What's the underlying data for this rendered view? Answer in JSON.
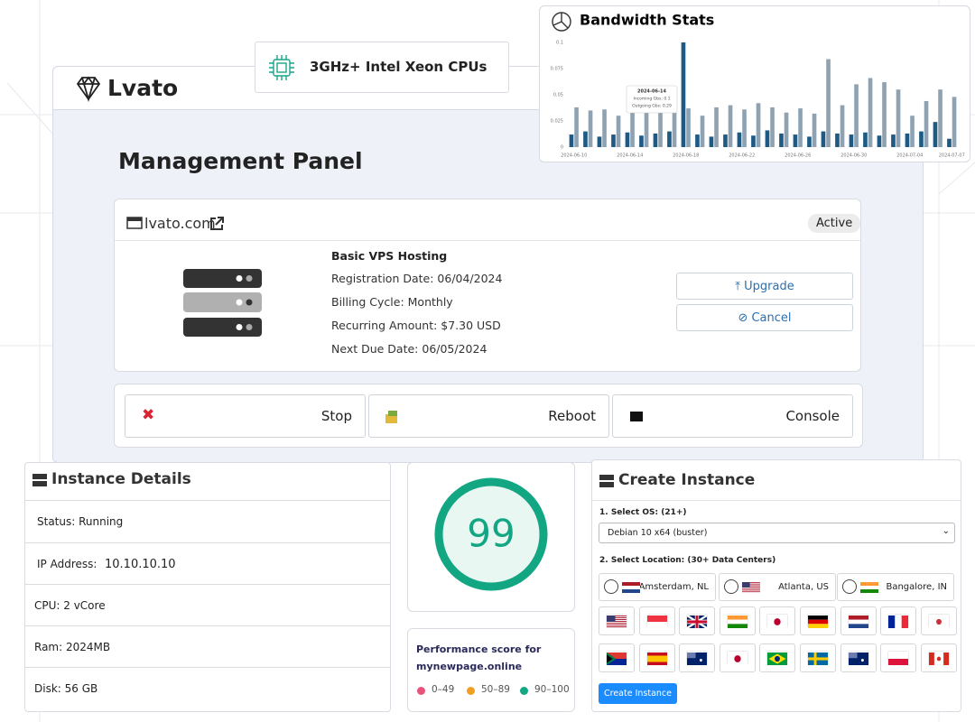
{
  "header": {
    "brand": "Lvato"
  },
  "badge": {
    "text": "3GHz+ Intel Xeon CPUs"
  },
  "chart_data": {
    "type": "bar",
    "title": "Bandwidth Stats",
    "categories": [
      "2024-06-10",
      null,
      null,
      null,
      "2024-06-14",
      null,
      null,
      null,
      "2024-06-18",
      null,
      null,
      null,
      "2024-06-22",
      null,
      null,
      null,
      "2024-06-26",
      null,
      null,
      null,
      "2024-06-30",
      null,
      null,
      null,
      "2024-07-04",
      null,
      null,
      "2024-07-07"
    ],
    "series": [
      {
        "color": "#1f5a85",
        "values": [
          0.012,
          0.015,
          0.01,
          0.012,
          0.014,
          0.011,
          0.013,
          0.015,
          0.1,
          0.012,
          0.01,
          0.012,
          0.014,
          0.011,
          0.016,
          0.013,
          0.012,
          0.01,
          0.015,
          0.013,
          0.012,
          0.014,
          0.011,
          0.012,
          0.013,
          0.015,
          0.024,
          0.008
        ]
      },
      {
        "color": "#8ea2b2",
        "values": [
          0.038,
          0.035,
          0.036,
          0.03,
          0.045,
          0.033,
          0.04,
          0.046,
          0.037,
          0.03,
          0.038,
          0.04,
          0.036,
          0.042,
          0.038,
          0.033,
          0.037,
          0.032,
          0.084,
          0.04,
          0.06,
          0.066,
          0.062,
          0.055,
          0.03,
          0.044,
          0.055,
          0.048
        ]
      }
    ],
    "ylim": [
      0,
      0.1
    ],
    "yticks": [
      0,
      0.025,
      0.05,
      0.075,
      0.1
    ],
    "grid": false,
    "annotations": [
      "2024-06-14",
      "Incoming Gbs: 0.1",
      "Outgoing Gbs: 0.29"
    ]
  },
  "panel": {
    "title": "Management Panel",
    "service": {
      "domain": "lvato.com",
      "status": "Active",
      "plan": "Basic VPS Hosting",
      "details": [
        "Registration Date: 06/04/2024",
        "Billing Cycle: Monthly",
        "Recurring Amount: $7.30 USD",
        "Next Due Date: 06/05/2024"
      ],
      "buttons": [
        "Upgrade",
        "Cancel"
      ]
    },
    "actions": [
      "Stop",
      "Reboot",
      "Console"
    ]
  },
  "instance": {
    "title": "Instance Details",
    "rows": [
      [
        "Status: Running"
      ],
      [
        "IP Address:",
        "10.10.10.10"
      ],
      [
        "CPU: 2 vCore"
      ],
      [
        "Ram: 2024MB"
      ],
      [
        "Disk: 56 GB"
      ]
    ]
  },
  "score": {
    "value": "99",
    "caption": [
      "Performance score for",
      "mynewpage.online"
    ],
    "legend": [
      {
        "label": "0–49",
        "color": "#e8537a"
      },
      {
        "label": "50–89",
        "color": "#f0a020"
      },
      {
        "label": "90–100",
        "color": "#13a683"
      }
    ]
  },
  "create": {
    "title": "Create Instance",
    "os_label": "1. Select OS: (21+)",
    "os_value": "Debian 10 x64 (buster)",
    "loc_label": "2. Select Location: (30+ Data Centers)",
    "locations": [
      "Amsterdam, NL",
      "Atlanta, US",
      "Bangalore, IN"
    ],
    "button": "Create Instance"
  }
}
